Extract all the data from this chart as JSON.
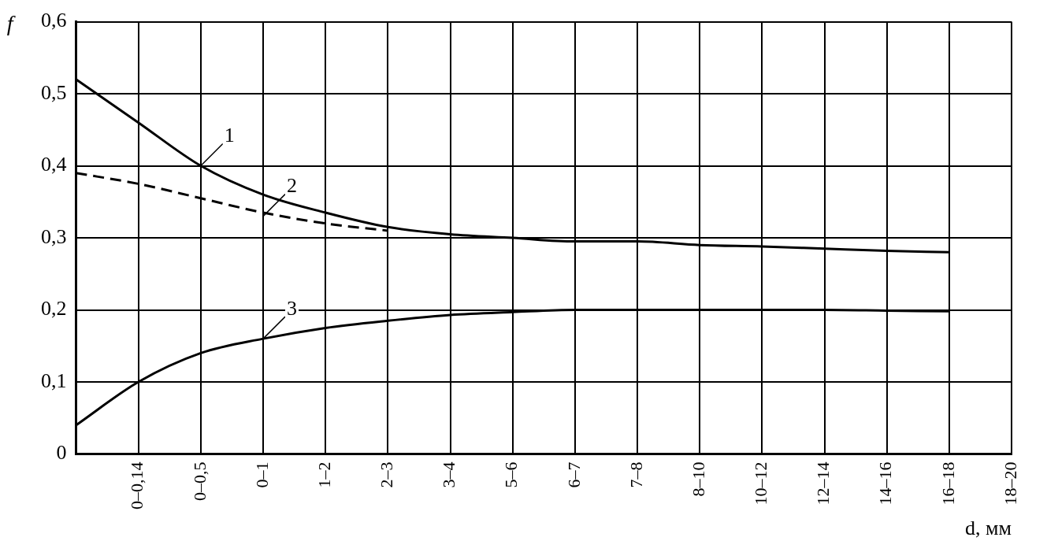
{
  "chart_data": {
    "type": "line",
    "xlabel": "d, мм",
    "ylabel": "f",
    "categories": [
      null,
      "0–0,14",
      "0–0,5",
      "0–1",
      "1–2",
      "2–3",
      "3–4",
      "5–6",
      "6–7",
      "7–8",
      "8–10",
      "10–12",
      "12–14",
      "14–16",
      "16–18",
      "18–20"
    ],
    "ylim": [
      0,
      0.6
    ],
    "yticks": [
      {
        "value": 0,
        "label": "0"
      },
      {
        "value": 0.1,
        "label": "0,1"
      },
      {
        "value": 0.2,
        "label": "0,2"
      },
      {
        "value": 0.3,
        "label": "0,3"
      },
      {
        "value": 0.4,
        "label": "0,4"
      },
      {
        "value": 0.5,
        "label": "0,5"
      },
      {
        "value": 0.6,
        "label": "0,6"
      }
    ],
    "series": [
      {
        "color": "#000000",
        "line_style": "solid",
        "values": [
          0.52,
          0.46,
          0.4,
          0.36,
          0.335,
          0.315,
          0.305,
          0.3,
          0.295,
          0.295,
          0.29,
          0.288,
          0.285,
          0.282,
          0.28,
          null
        ]
      },
      {
        "color": "#000000",
        "line_style": "dashed",
        "values": [
          0.39,
          0.375,
          0.355,
          0.335,
          0.32,
          0.31,
          null,
          null,
          null,
          null,
          null,
          null,
          null,
          null,
          null,
          null
        ]
      },
      {
        "color": "#000000",
        "line_style": "solid",
        "values": [
          0.04,
          0.1,
          0.14,
          0.16,
          0.175,
          0.185,
          0.193,
          0.197,
          0.2,
          0.2,
          0.2,
          0.2,
          0.2,
          0.199,
          0.198,
          null
        ]
      }
    ],
    "annotations": [
      {
        "text": "1",
        "x": "0–0,5",
        "y": 0.4
      },
      {
        "text": "2",
        "x": "0–1",
        "y": 0.33
      },
      {
        "text": "3",
        "x": "0–1",
        "y": 0.16
      }
    ],
    "grid": true,
    "legend": false,
    "marker": "none"
  }
}
